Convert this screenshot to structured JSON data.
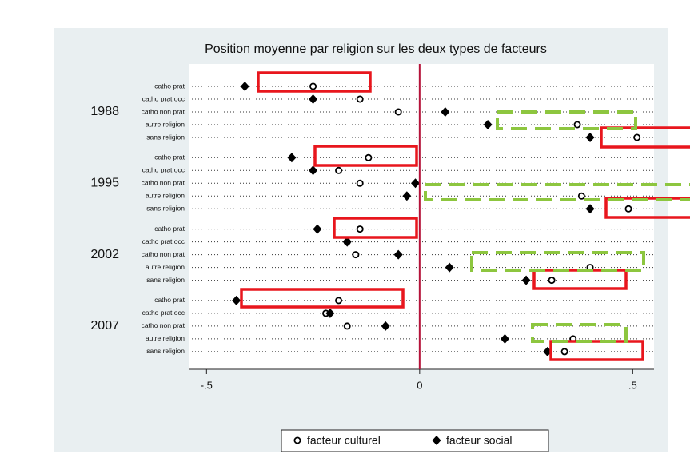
{
  "chart_data": {
    "type": "dot",
    "title": "Position moyenne par religion sur les deux types de facteurs",
    "groups": [
      "1988",
      "1995",
      "2002",
      "2007"
    ],
    "categories": [
      "catho prat",
      "catho prat occ",
      "catho non prat",
      "autre religion",
      "sans religion",
      "catho prat",
      "catho prat occ",
      "catho non prat",
      "autre religion",
      "sans religion",
      "catho prat",
      "catho prat occ",
      "catho non prat",
      "autre religion",
      "sans religion",
      "catho prat",
      "catho prat occ",
      "catho non prat",
      "autre religion",
      "sans religion"
    ],
    "series": [
      {
        "name": "facteur culturel",
        "marker": "circle",
        "color": "#000000",
        "values": [
          -0.25,
          -0.14,
          -0.05,
          0.37,
          0.51,
          -0.12,
          -0.19,
          -0.14,
          0.38,
          0.49,
          -0.14,
          -0.17,
          -0.15,
          0.4,
          0.31,
          -0.19,
          -0.22,
          -0.17,
          0.36,
          0.34
        ]
      },
      {
        "name": "facteur social",
        "marker": "diamond",
        "color": "#000000",
        "values": [
          -0.41,
          -0.25,
          0.06,
          0.16,
          0.4,
          -0.3,
          -0.25,
          -0.01,
          -0.03,
          0.4,
          -0.24,
          -0.17,
          -0.05,
          0.07,
          0.25,
          -0.43,
          -0.21,
          -0.08,
          0.2,
          0.3
        ]
      }
    ],
    "xlim": [
      -0.54,
      0.55
    ],
    "xticks": [
      {
        "value": -0.5,
        "label": "-.5"
      },
      0,
      {
        "value": 0.5,
        "label": ".5"
      }
    ],
    "reference_line": 0,
    "reference_color": "#b5123a",
    "legend": "bottom"
  }
}
